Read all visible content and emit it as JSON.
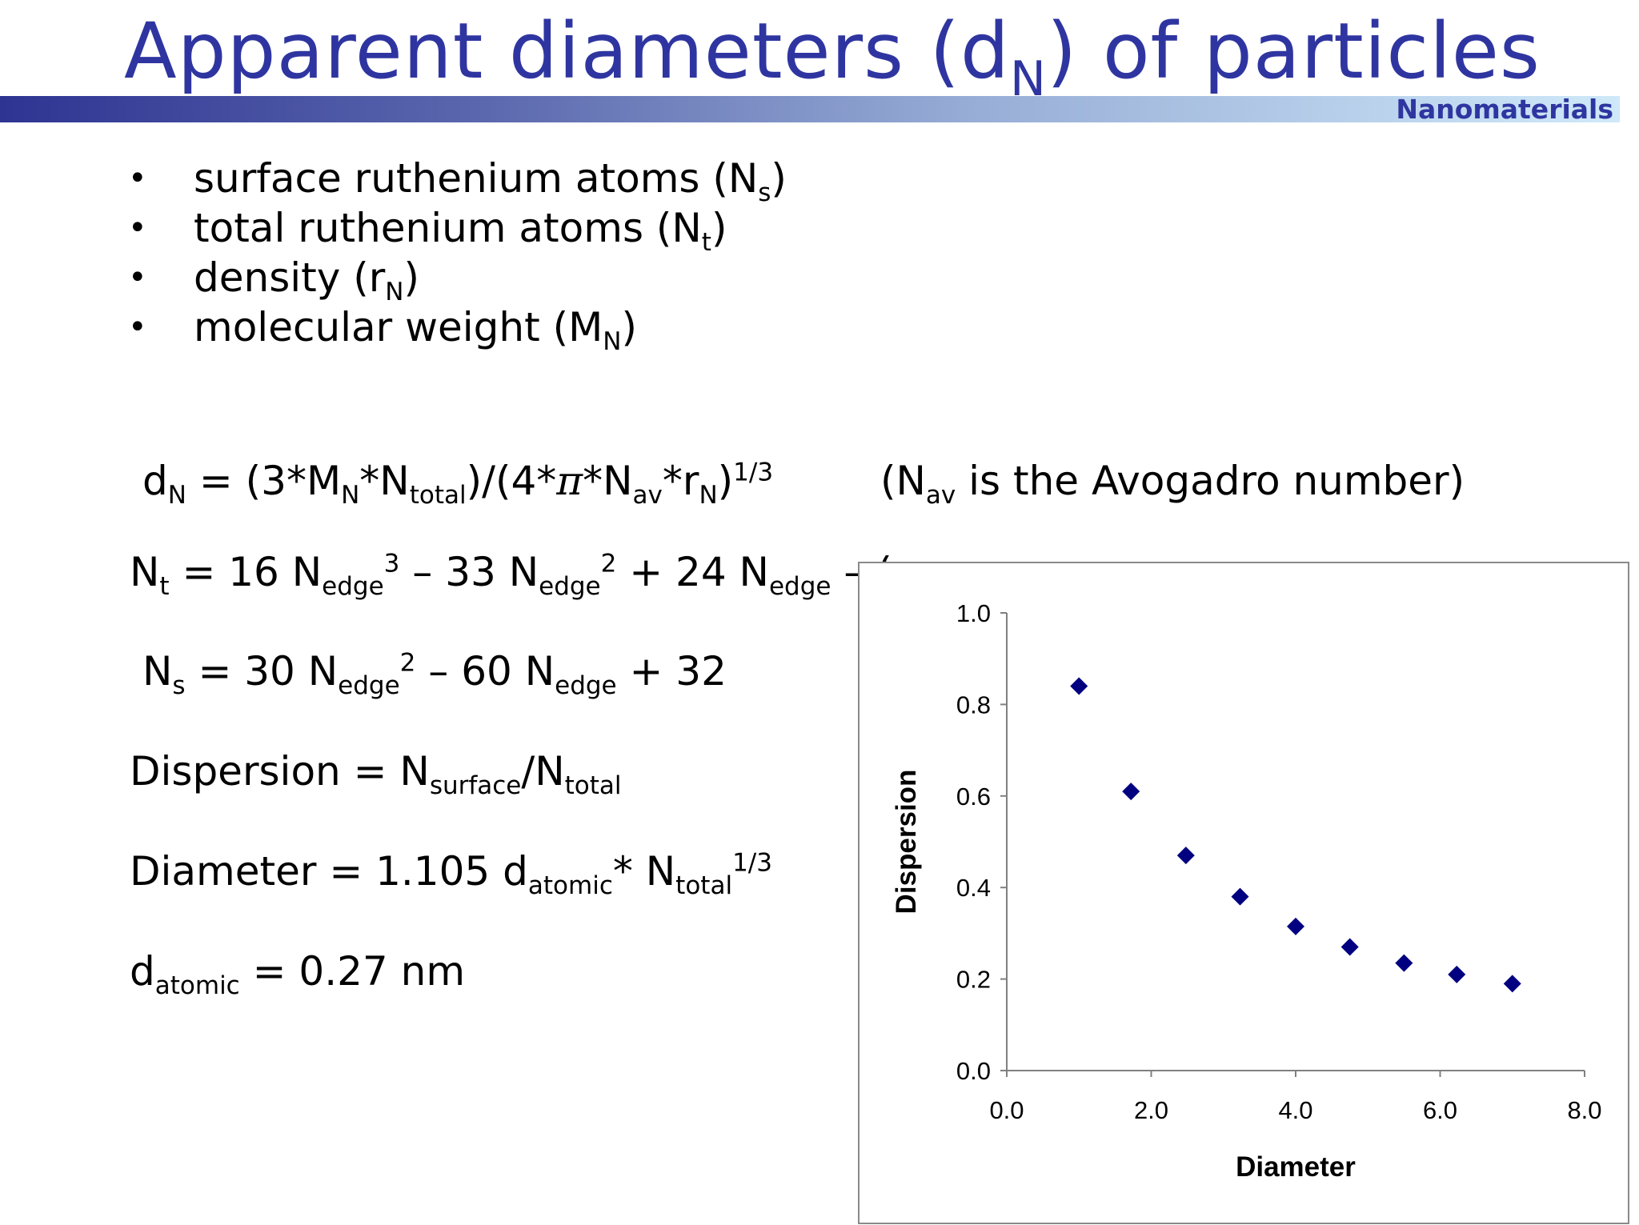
{
  "slide": {
    "title_main": "Apparent diameters (d",
    "title_sub": "N",
    "title_end": ") of particles",
    "tag": "Nanomaterials",
    "bullets": [
      {
        "text": "surface ruthenium atoms (N",
        "sub": "s",
        "end": ")"
      },
      {
        "text": "total ruthenium atoms (N",
        "sub": "t",
        "end": ")"
      },
      {
        "text": "density (r",
        "sub": "N",
        "end": ")"
      },
      {
        "text": "molecular weight (M",
        "sub": "N",
        "end": ")"
      }
    ],
    "formula_dn": {
      "p1": "d",
      "s1": "N",
      "p2": " = (3*M",
      "s2": "N",
      "p3": "*N",
      "s3": "total",
      "p4": ")/(4*",
      "pi": "π",
      "p5": "*N",
      "s4": "av",
      "p6": "*r",
      "s5": "N",
      "p7": ")",
      "exp": "1/3"
    },
    "avogadro_note": {
      "p1": "(N",
      "s1": "av",
      "p2": " is the Avogadro number)"
    },
    "formula_nt": {
      "p1": "N",
      "s1": "t",
      "p2": " = 16 N",
      "s2": "edge",
      "e2": "3",
      "p3": " – 33 N",
      "s3": "edge",
      "e3": "2",
      "p4": " + 24 N",
      "s4": "edge",
      "p5": " – ("
    },
    "formula_ns": {
      "p1": "N",
      "s1": "s",
      "p2": " = 30 N",
      "s2": "edge",
      "e2": "2",
      "p3": " – 60 N",
      "s3": "edge",
      "p4": " + 32"
    },
    "formula_dispersion": {
      "p1": "Dispersion = N",
      "s1": "surface",
      "p2": "/N",
      "s2": "total"
    },
    "formula_diameter": {
      "p1": "Diameter = 1.105 d",
      "s1": "atomic",
      "p2": "* N",
      "s2": "total",
      "e2": "1/3"
    },
    "formula_datomic": {
      "p1": "d",
      "s1": "atomic",
      "p2": " = 0.27 nm"
    }
  },
  "chart_data": {
    "type": "scatter",
    "xlabel": "Diameter",
    "ylabel": "Dispersion",
    "xlim": [
      0,
      8
    ],
    "ylim": [
      0,
      1
    ],
    "x_ticks": [
      "0.0",
      "2.0",
      "4.0",
      "6.0",
      "8.0"
    ],
    "y_ticks": [
      "0.0",
      "0.2",
      "0.4",
      "0.6",
      "0.8",
      "1.0"
    ],
    "marker": "diamond",
    "marker_color": "#000080",
    "points": [
      {
        "x": 1.0,
        "y": 0.84
      },
      {
        "x": 1.72,
        "y": 0.61
      },
      {
        "x": 2.48,
        "y": 0.47
      },
      {
        "x": 3.23,
        "y": 0.38
      },
      {
        "x": 4.0,
        "y": 0.315
      },
      {
        "x": 4.75,
        "y": 0.27
      },
      {
        "x": 5.5,
        "y": 0.235
      },
      {
        "x": 6.23,
        "y": 0.21
      },
      {
        "x": 7.0,
        "y": 0.19
      }
    ],
    "grid": false,
    "legend": "none"
  }
}
